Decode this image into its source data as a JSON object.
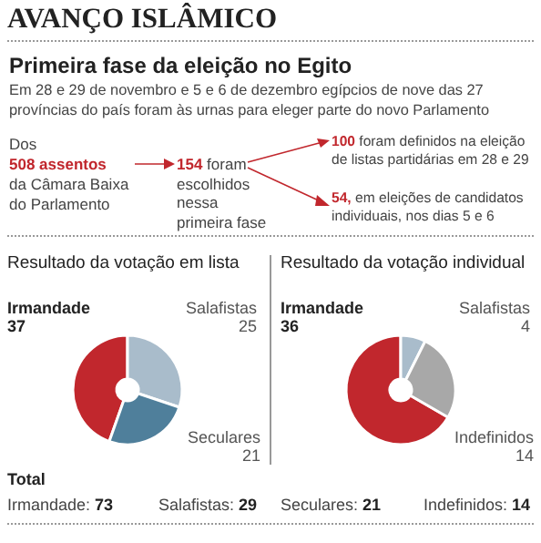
{
  "chart_data": [
    {
      "type": "other",
      "title": "AVANÇO ISLÂMICO",
      "subtitle": "Primeira fase da eleição no Egito",
      "annotations": [
        "Em 28 e 29 de novembro e 5 e 6 de dezembro egípcios de nove das 27 províncias do país foram às urnas para eleger parte do novo Parlamento",
        "Dos",
        "508 assentos",
        "da Câmara Baixa do Parlamento",
        "154 foram escolhidos nessa primeira fase",
        "100 foram definidos na eleição de listas partidárias em 28 e 29",
        "54, em eleições de candidatos individuais, nos dias 5 e 6"
      ]
    },
    {
      "type": "donut",
      "title": "Resultado da votação em lista",
      "categories": [
        "Irmandade",
        "Salafistas",
        "Seculares"
      ],
      "values": [
        37,
        25,
        21
      ],
      "colors": [
        "#c1272d",
        "#a9bccb",
        "#4f7f9b"
      ],
      "data_labels": true,
      "annotations": [
        "Total",
        "Irmandade: 73",
        "Salafistas: 29"
      ]
    },
    {
      "type": "donut",
      "title": "Resultado da votação individual",
      "categories": [
        "Irmandade",
        "Salafistas",
        "Indefinidos"
      ],
      "values": [
        36,
        4,
        14
      ],
      "colors": [
        "#c1272d",
        "#a9bccb",
        "#a8a8a8"
      ],
      "data_labels": true,
      "annotations": [
        "Seculares: 21",
        "Indefinidos: 14"
      ]
    }
  ]
}
